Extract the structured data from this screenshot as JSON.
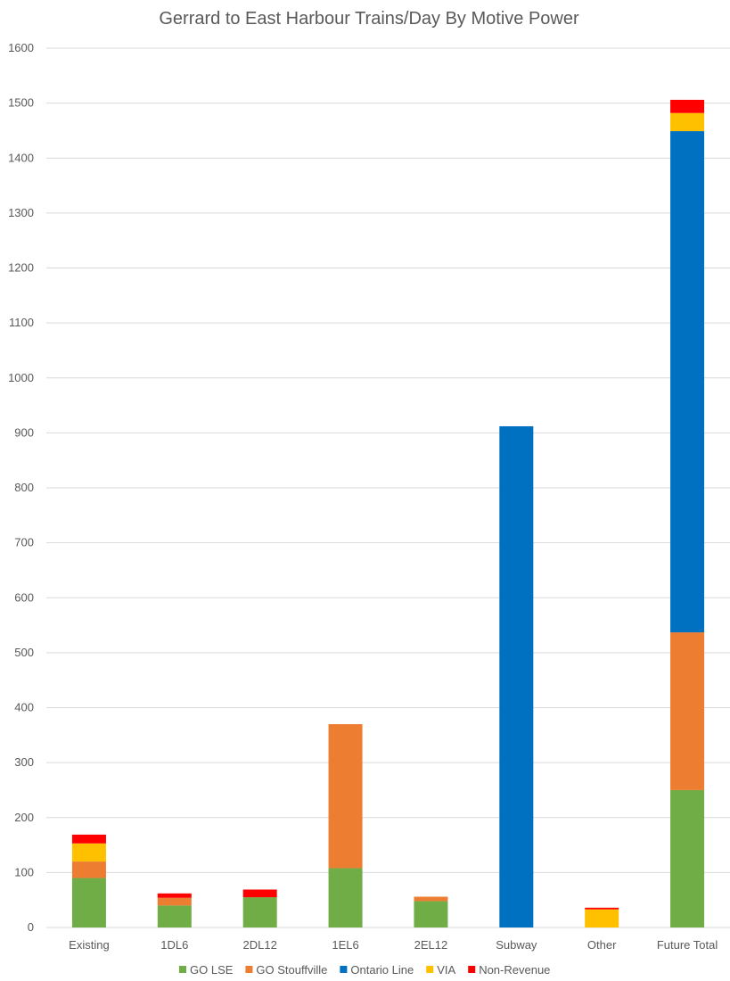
{
  "chart_data": {
    "type": "bar",
    "stacked": true,
    "title": "Gerrard to East Harbour Trains/Day By Motive Power",
    "xlabel": "",
    "ylabel": "",
    "ylim": [
      0,
      1600
    ],
    "ytick_step": 100,
    "grid": true,
    "legend_position": "bottom",
    "categories": [
      "Existing",
      "1DL6",
      "2DL12",
      "1EL6",
      "2EL12",
      "Subway",
      "Other",
      "Future Total"
    ],
    "series": [
      {
        "name": "GO LSE",
        "color": "#70ad47",
        "values": [
          90,
          40,
          55,
          108,
          48,
          0,
          0,
          250
        ]
      },
      {
        "name": "GO Stouffville",
        "color": "#ed7d31",
        "values": [
          30,
          14,
          0,
          262,
          8,
          0,
          0,
          287
        ]
      },
      {
        "name": "Ontario Line",
        "color": "#0070c0",
        "values": [
          0,
          0,
          0,
          0,
          0,
          912,
          0,
          912
        ]
      },
      {
        "name": "VIA",
        "color": "#ffc000",
        "values": [
          33,
          0,
          0,
          0,
          0,
          0,
          33,
          33
        ]
      },
      {
        "name": "Non-Revenue",
        "color": "#ff0000",
        "values": [
          16,
          8,
          14,
          0,
          0,
          0,
          3,
          24
        ]
      }
    ]
  }
}
